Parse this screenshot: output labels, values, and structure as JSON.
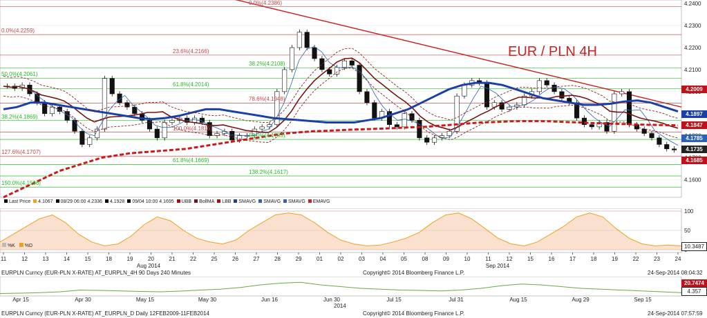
{
  "chart_data": [
    {
      "type": "candlestick",
      "title": "EUR / PLN 4H",
      "title_color": "#cc2222",
      "y_ticks": [
        "4.2400",
        "4.2300",
        "4.2200",
        "4.2100",
        "4.2000",
        "4.1900",
        "4.1800",
        "4.1700",
        "4.1600"
      ],
      "ylim": [
        4.152,
        4.241
      ],
      "x_tick_labels": [
        "11",
        "12",
        "13",
        "14",
        "15",
        "18",
        "19",
        "20",
        "21",
        "22",
        "25",
        "26",
        "27",
        "28",
        "29",
        "01",
        "02",
        "03",
        "04",
        "05",
        "08",
        "09",
        "10",
        "11",
        "12",
        "15",
        "16",
        "17",
        "18",
        "19",
        "22",
        "23",
        "24"
      ],
      "x_group_labels": [
        "Aug 2014",
        "Sep 2014"
      ],
      "price_flags": [
        {
          "label": "4.2009",
          "value": 4.2009,
          "color": "#c0101a"
        },
        {
          "label": "4.1897",
          "value": 4.1897,
          "color": "#1a3fa8"
        },
        {
          "label": "4.1847",
          "value": 4.1847,
          "color": "#c0101a"
        },
        {
          "label": "4.1785",
          "value": 4.1785,
          "color": "#2a62b8"
        },
        {
          "label": "4.1735",
          "value": 4.1735,
          "color": "#222222"
        },
        {
          "label": "4.1685",
          "value": 4.1685,
          "color": "#c0101a"
        }
      ],
      "fib_labels": [
        {
          "text": "0.0%(4.2386)",
          "value": 4.2386
        },
        {
          "text": "0.0%(4.2259)",
          "value": 4.2259
        },
        {
          "text": "23.6%(4.2166)",
          "value": 4.2166
        },
        {
          "text": "38.2%(4.2108)",
          "value": 4.2108
        },
        {
          "text": "50.0%(4.2061)",
          "value": 4.2061
        },
        {
          "text": "61.8%(4.2014)",
          "value": 4.2014
        },
        {
          "text": "78.6%(4.1948)",
          "value": 4.1948
        },
        {
          "text": "38.2%(4.1869)",
          "value": 4.1869
        },
        {
          "text": "100.0%(4.1816)",
          "value": 4.1816
        },
        {
          "text": "50.0%(4.1783)",
          "value": 4.1783
        },
        {
          "text": "127.6%(4.1707)",
          "value": 4.1707
        },
        {
          "text": "61.8%(4.1669)",
          "value": 4.1669
        },
        {
          "text": "138.2%(4.1617)",
          "value": 4.1617
        },
        {
          "text": "150.0%(4.1566)",
          "value": 4.1566
        }
      ],
      "legend": [
        {
          "text": "Last Price",
          "color": "#000000"
        },
        {
          "text": "4.1067",
          "color": "#f0a020"
        },
        {
          "text": "08/29 06:00 4.2336",
          "color": "#000000"
        },
        {
          "text": "4.1928",
          "color": "#000000"
        },
        {
          "text": "09/04 10:00 4.1695",
          "color": "#000000"
        },
        {
          "text": "UBB",
          "color": "#a01010"
        },
        {
          "text": "BollMA",
          "color": "#7a1010"
        },
        {
          "text": "LBB",
          "color": "#a01010"
        },
        {
          "text": "SMAVG",
          "color": "#1a3fa8"
        },
        {
          "text": "SMAVG",
          "color": "#2a62b8"
        },
        {
          "text": "SMAVG",
          "color": "#2a62b8"
        },
        {
          "text": "EMAVG",
          "color": "#cc2222"
        }
      ],
      "candles": [
        4.2025,
        4.2015,
        4.203,
        4.199,
        4.195,
        4.19,
        4.193,
        4.191,
        4.187,
        4.182,
        4.176,
        4.179,
        4.183,
        4.206,
        4.199,
        4.195,
        4.193,
        4.19,
        4.187,
        4.183,
        4.179,
        4.186,
        4.187,
        4.188,
        4.186,
        4.188,
        4.186,
        4.18,
        4.181,
        4.182,
        4.178,
        4.18,
        4.18,
        4.183,
        4.184,
        4.185,
        4.2,
        4.21,
        4.22,
        4.227,
        4.22,
        4.215,
        4.21,
        4.208,
        4.211,
        4.214,
        4.212,
        4.2,
        4.195,
        4.188,
        4.191,
        4.185,
        4.184,
        4.19,
        4.187,
        4.179,
        4.177,
        4.179,
        4.18,
        4.182,
        4.198,
        4.203,
        4.205,
        4.204,
        4.193,
        4.195,
        4.192,
        4.193,
        4.194,
        4.198,
        4.2,
        4.205,
        4.203,
        4.2,
        4.197,
        4.195,
        4.188,
        4.185,
        4.184,
        4.186,
        4.182,
        4.199,
        4.2,
        4.185,
        4.183,
        4.181,
        4.179,
        4.176,
        4.174,
        4.1735
      ],
      "sma_fast_blue": [
        4.192,
        4.193,
        4.195,
        4.195,
        4.194,
        4.193,
        4.192,
        4.191,
        4.19,
        4.189,
        4.188,
        4.1875,
        4.188,
        4.189,
        4.1905,
        4.192,
        4.192,
        4.191,
        4.19,
        4.189,
        4.188,
        4.1875,
        4.187,
        4.1865,
        4.186,
        4.186,
        4.186,
        4.187,
        4.188,
        4.19,
        4.192,
        4.195,
        4.198,
        4.201,
        4.203,
        4.204,
        4.204,
        4.203,
        4.201,
        4.199,
        4.197,
        4.196,
        4.195,
        4.194,
        4.194,
        4.1945,
        4.1955,
        4.196,
        4.195,
        4.193,
        4.191
      ],
      "ema_red": [
        4.152,
        4.155,
        4.158,
        4.161,
        4.164,
        4.166,
        4.168,
        4.17,
        4.171,
        4.172,
        4.1725,
        4.173,
        4.1735,
        4.174,
        4.175,
        4.176,
        4.177,
        4.178,
        4.179,
        4.18,
        4.181,
        4.1815,
        4.182,
        4.1822,
        4.1825,
        4.1828,
        4.183,
        4.1832,
        4.1835,
        4.1838,
        4.184,
        4.1845,
        4.185,
        4.1855,
        4.186,
        4.1862,
        4.1865,
        4.1866,
        4.1866,
        4.1865,
        4.1862,
        4.186,
        4.1857,
        4.1855,
        4.1853,
        4.1851,
        4.1849,
        4.1848,
        4.1847
      ]
    },
    {
      "type": "line",
      "y_ticks": [
        "100",
        "50",
        "0"
      ],
      "ylim": [
        0,
        100
      ],
      "right_value": "10.3487",
      "legend_markers": [
        {
          "text": "%K"
        },
        {
          "text": "%D"
        }
      ]
    },
    {
      "type": "line",
      "right_values": [
        {
          "text": "20.7474",
          "color": "#c0101a"
        },
        {
          "text": "4.357",
          "color": "#ffffff"
        }
      ]
    }
  ],
  "footer_4h": {
    "left": "EURPLN Curncy (EUR-PLN X-RATE) AT_EURPLN_4H 90 Days 240 Minutes",
    "center": "Copyright© 2014 Bloomberg Finance L.P.",
    "right": "24-Sep-2014 08:04:32"
  },
  "daily_x_labels": [
    "Apr 15",
    "Apr 30",
    "May 15",
    "May 30",
    "Jun 16",
    "Jun 30",
    "Jul 15",
    "Jul 31",
    "Aug 15",
    "Aug 29",
    "Sep 15"
  ],
  "daily_year": "2014",
  "footer_daily": {
    "left": "EURPLN Curncy (EUR-PLN X-RATE) AT_EURPLN_D  Daily 12FEB2009-11FEB2014",
    "center": "Copyright© 2014 Bloomberg Finance L.P.",
    "right": "24-Sep-2014 07:57:59"
  }
}
